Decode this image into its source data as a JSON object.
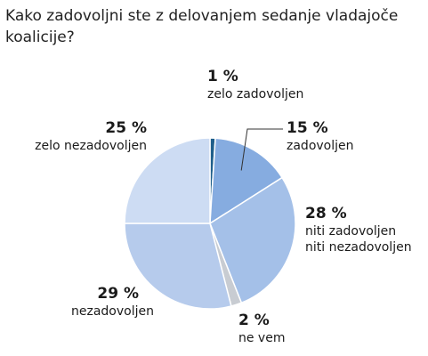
{
  "title": "Kako zadovoljni ste z delovanjem sedanje vladajoče koalicije?",
  "chart_data": {
    "type": "pie",
    "start_angle_deg": 0,
    "direction": "clockwise",
    "slices": [
      {
        "label": "zelo zadovoljen",
        "value": 1,
        "display": "1 %",
        "color": "#1f5f8b"
      },
      {
        "label": "zadovoljen",
        "value": 15,
        "display": "15 %",
        "color": "#86ace0"
      },
      {
        "label": "niti zadovoljen\nniti nezadovoljen",
        "value": 28,
        "display": "28 %",
        "color": "#a4c0e8"
      },
      {
        "label": "ne vem",
        "value": 2,
        "display": "2 %",
        "color": "#c8ccd2"
      },
      {
        "label": "nezadovoljen",
        "value": 29,
        "display": "29 %",
        "color": "#b6cbec"
      },
      {
        "label": "zelo nezadovoljen",
        "value": 25,
        "display": "25 %",
        "color": "#cddcf3"
      }
    ]
  }
}
